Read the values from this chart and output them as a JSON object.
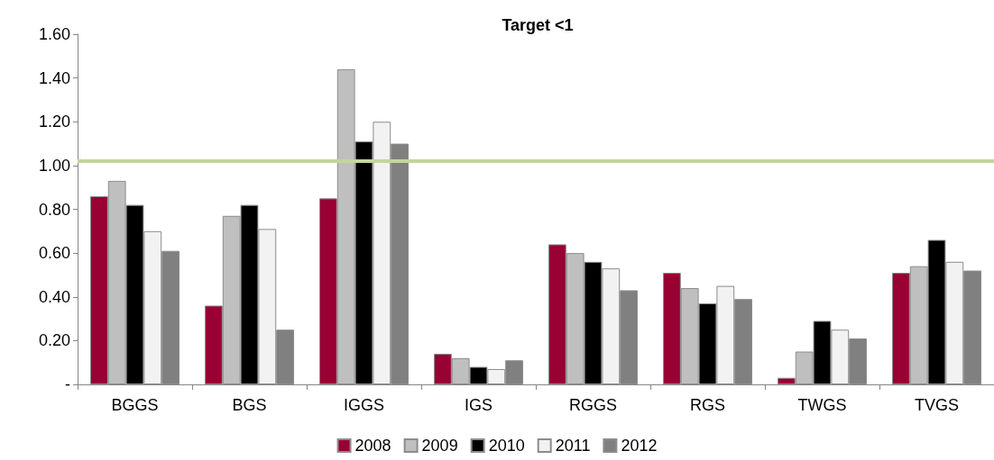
{
  "chart_data": {
    "type": "bar",
    "title": "Target <1",
    "categories": [
      "BGGS",
      "BGS",
      "IGGS",
      "IGS",
      "RGGS",
      "RGS",
      "TWGS",
      "TVGS"
    ],
    "series": [
      {
        "name": "2008",
        "color": "#990033",
        "values": [
          0.86,
          0.36,
          0.85,
          0.14,
          0.64,
          0.51,
          0.03,
          0.51
        ]
      },
      {
        "name": "2009",
        "color": "#bfbfbf",
        "values": [
          0.93,
          0.77,
          1.44,
          0.12,
          0.6,
          0.44,
          0.15,
          0.54
        ]
      },
      {
        "name": "2010",
        "color": "#000000",
        "values": [
          0.82,
          0.82,
          1.11,
          0.08,
          0.56,
          0.37,
          0.29,
          0.66
        ]
      },
      {
        "name": "2011",
        "color": "#f2f2f2",
        "values": [
          0.7,
          0.71,
          1.2,
          0.07,
          0.53,
          0.45,
          0.25,
          0.56
        ]
      },
      {
        "name": "2012",
        "color": "#808080",
        "values": [
          0.61,
          0.25,
          1.1,
          0.11,
          0.43,
          0.39,
          0.21,
          0.52
        ]
      }
    ],
    "ylim": [
      0,
      1.6
    ],
    "yticks": [
      {
        "value": 0,
        "label": "-"
      },
      {
        "value": 0.2,
        "label": "0.20"
      },
      {
        "value": 0.4,
        "label": "0.40"
      },
      {
        "value": 0.6,
        "label": "0.60"
      },
      {
        "value": 0.8,
        "label": "0.80"
      },
      {
        "value": 1,
        "label": "1.00"
      },
      {
        "value": 1.2,
        "label": "1.20"
      },
      {
        "value": 1.4,
        "label": "1.40"
      },
      {
        "value": 1.6,
        "label": "1.60"
      }
    ],
    "ref_lines": [
      {
        "axis": "y",
        "value": 1.02,
        "color": "#c3d69b"
      }
    ],
    "grid": false,
    "legend": "bottom"
  }
}
